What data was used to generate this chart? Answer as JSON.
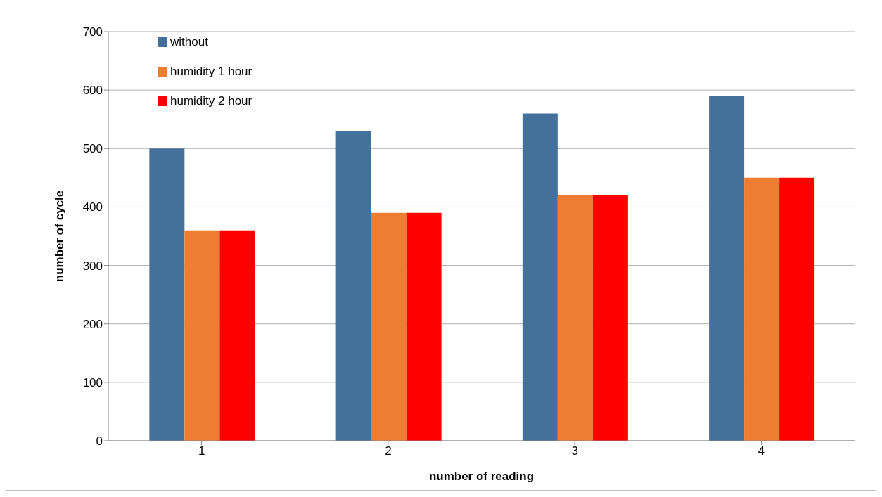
{
  "chart_data": {
    "type": "bar",
    "xlabel": "number of reading",
    "ylabel": "number of cycle",
    "categories": [
      "1",
      "2",
      "3",
      "4"
    ],
    "series": [
      {
        "name": "without",
        "color": "#44719c",
        "values": [
          500,
          530,
          560,
          590
        ]
      },
      {
        "name": "humidity 1 hour",
        "color": "#ed7d31",
        "values": [
          360,
          390,
          420,
          450
        ]
      },
      {
        "name": "humidity 2 hour",
        "color": "#ff0000",
        "values": [
          360,
          390,
          420,
          450
        ]
      }
    ],
    "ylim": [
      0,
      700
    ],
    "yticks": [
      0,
      100,
      200,
      300,
      400,
      500,
      600,
      700
    ],
    "grid": "y",
    "legend": "top left"
  }
}
